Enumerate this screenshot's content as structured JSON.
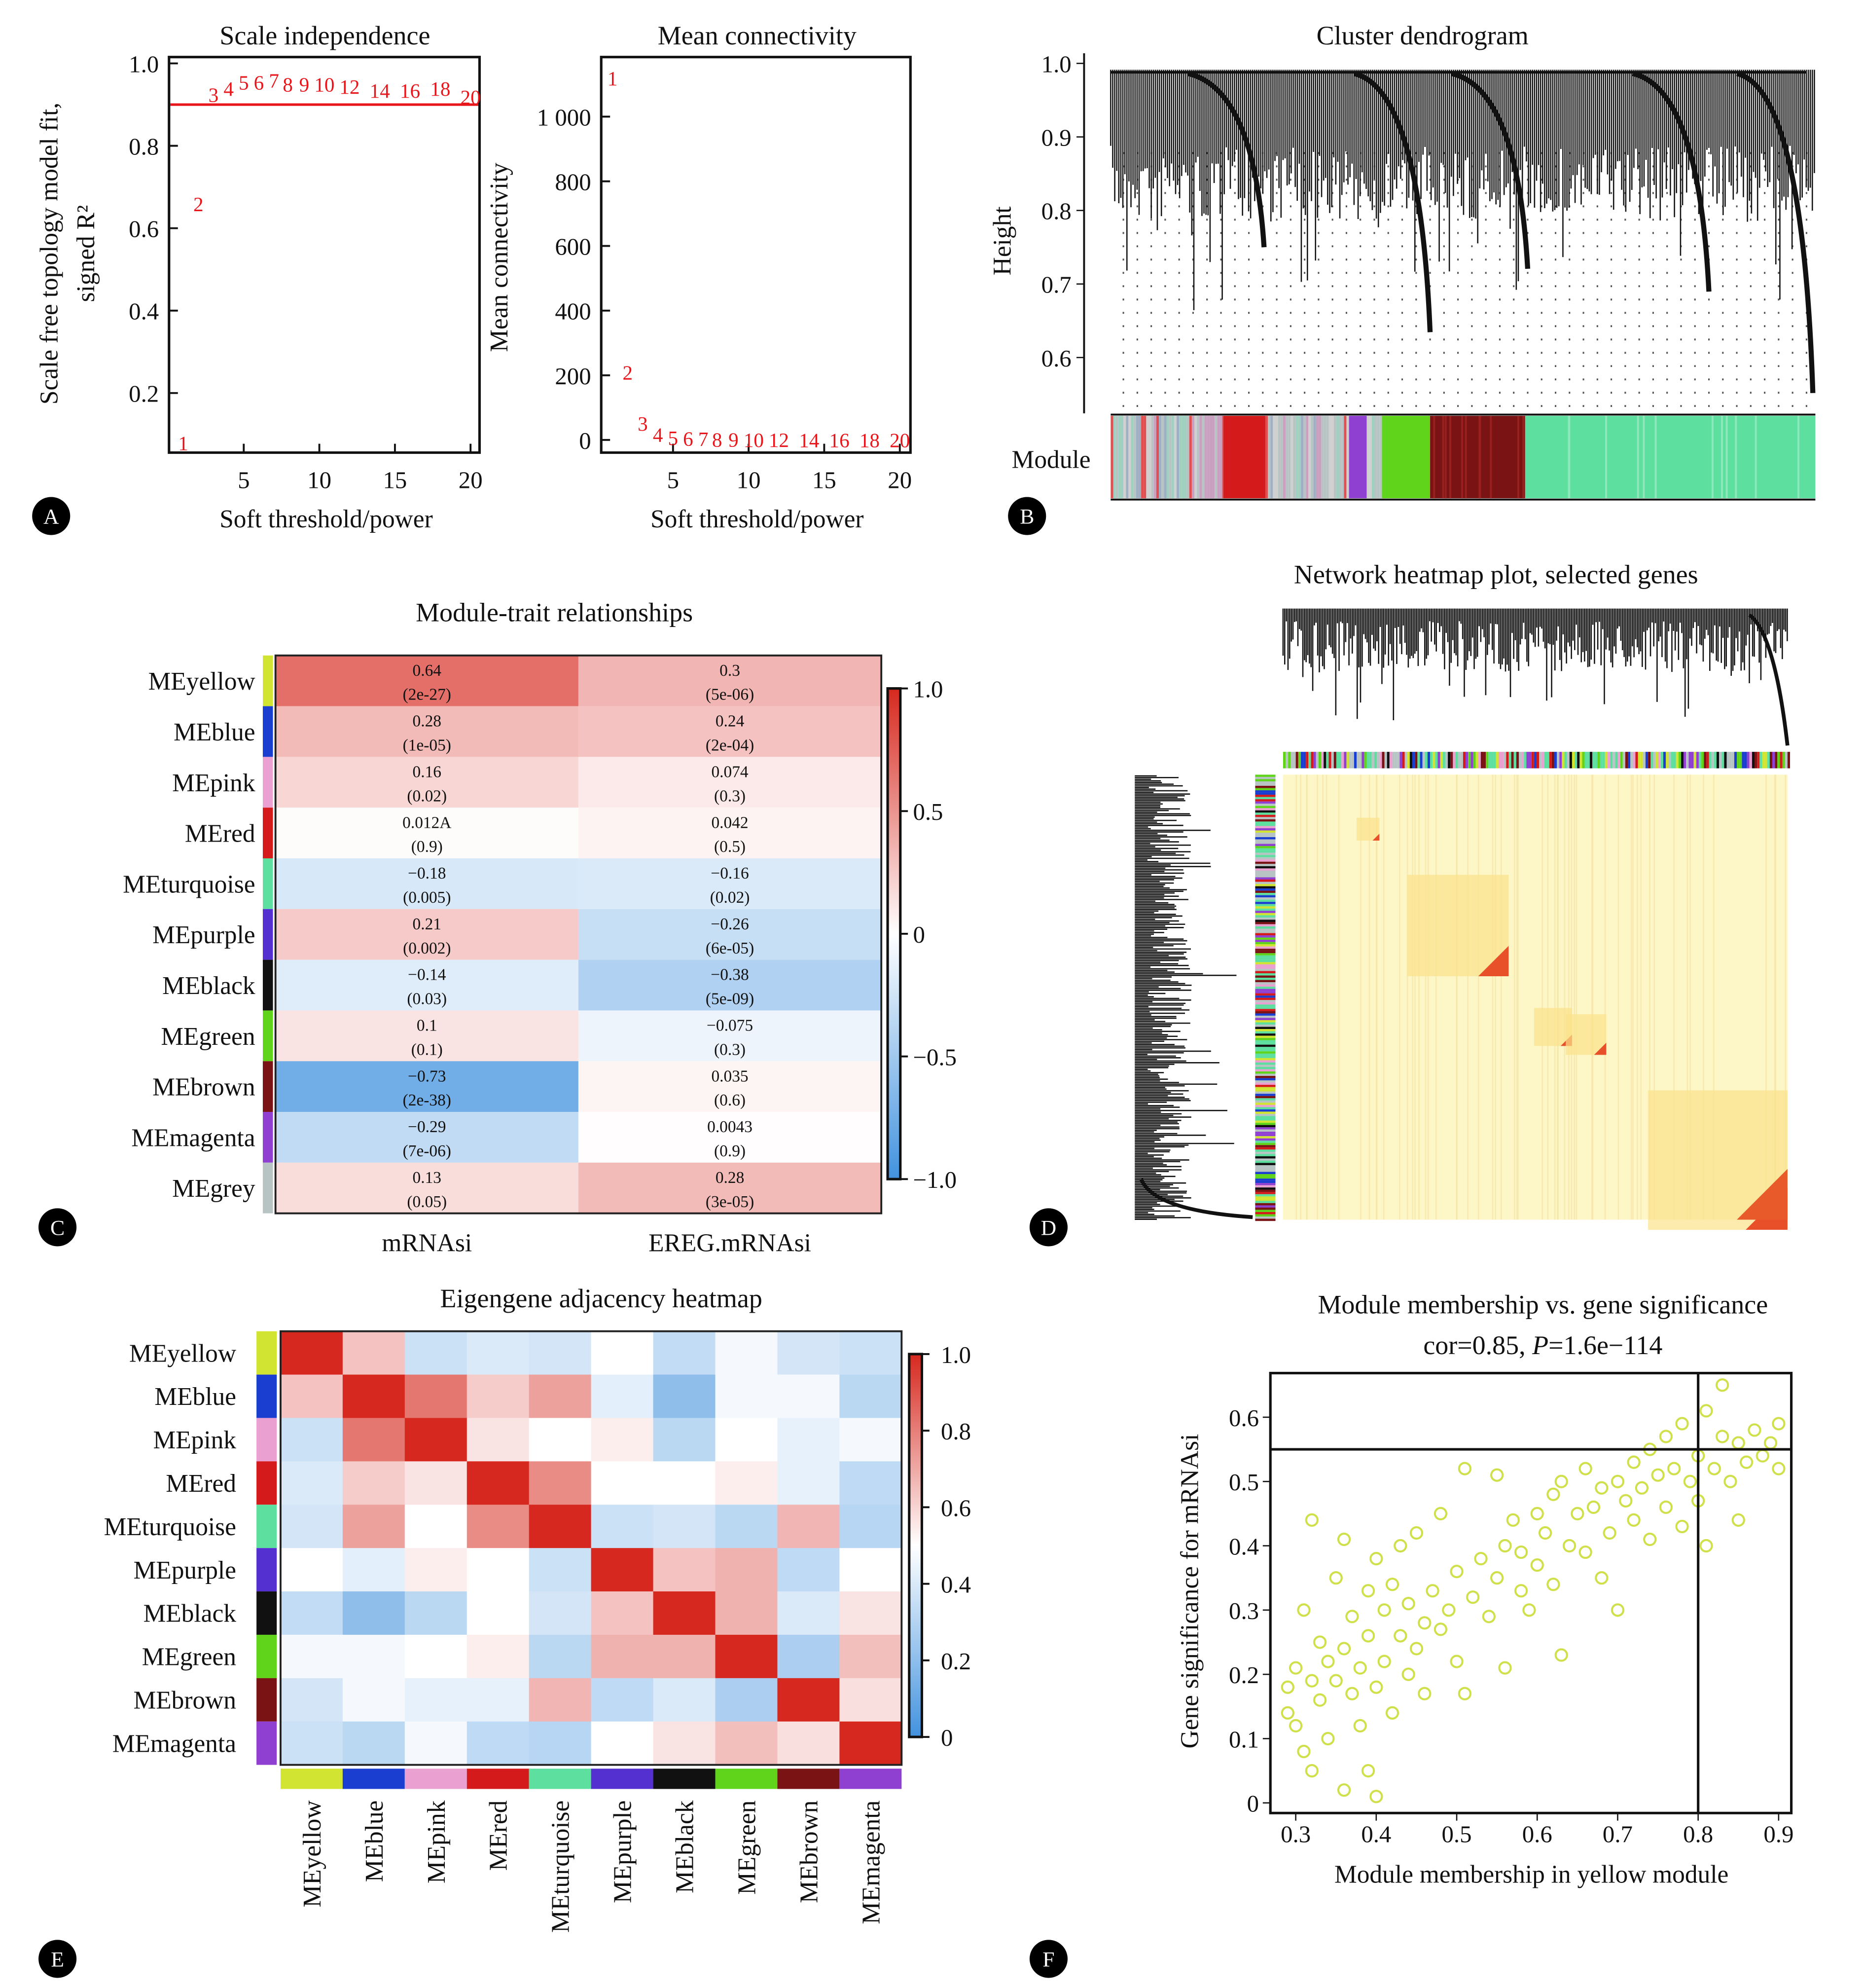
{
  "panels": {
    "A": "A",
    "B": "B",
    "C": "C",
    "D": "D",
    "E": "E",
    "F": "F"
  },
  "chart_data": [
    {
      "id": "scale_independence",
      "type": "scatter",
      "title": "Scale independence",
      "xlabel": "Soft threshold/power",
      "ylabel_line1": "Scale free topology model fit,",
      "ylabel_line2": "signed R²",
      "xticks": [
        "5",
        "10",
        "15",
        "20"
      ],
      "yticks": [
        "0.2",
        "0.4",
        "0.6",
        "0.8",
        "1.0"
      ],
      "xlim": [
        0,
        20.5
      ],
      "ylim": [
        0.05,
        1.0
      ],
      "threshold_line": 0.9,
      "threshold_color": "#e8151b",
      "points": [
        {
          "label": "1",
          "x": 1,
          "y": 0.08
        },
        {
          "label": "2",
          "x": 2,
          "y": 0.66
        },
        {
          "label": "3",
          "x": 3,
          "y": 0.925
        },
        {
          "label": "4",
          "x": 4,
          "y": 0.94
        },
        {
          "label": "5",
          "x": 5,
          "y": 0.955
        },
        {
          "label": "6",
          "x": 6,
          "y": 0.955
        },
        {
          "label": "7",
          "x": 7,
          "y": 0.96
        },
        {
          "label": "8",
          "x": 8,
          "y": 0.95
        },
        {
          "label": "9",
          "x": 9,
          "y": 0.95
        },
        {
          "label": "10",
          "x": 10,
          "y": 0.95
        },
        {
          "label": "12",
          "x": 12,
          "y": 0.945
        },
        {
          "label": "14",
          "x": 14,
          "y": 0.935
        },
        {
          "label": "16",
          "x": 16,
          "y": 0.935
        },
        {
          "label": "18",
          "x": 18,
          "y": 0.94
        },
        {
          "label": "20",
          "x": 20,
          "y": 0.92
        }
      ]
    },
    {
      "id": "mean_connectivity",
      "type": "scatter",
      "title": "Mean connectivity",
      "xlabel": "Soft threshold/power",
      "ylabel": "Mean connectivity",
      "xticks": [
        "5",
        "10",
        "15",
        "20"
      ],
      "yticks": [
        "0",
        "200",
        "400",
        "600",
        "800",
        "1 000"
      ],
      "ytick_values": [
        0,
        200,
        400,
        600,
        800,
        1000
      ],
      "xlim": [
        0,
        20.5
      ],
      "ylim": [
        -40,
        1200
      ],
      "points": [
        {
          "label": "1",
          "x": 1,
          "y": 1120
        },
        {
          "label": "2",
          "x": 2,
          "y": 210
        },
        {
          "label": "3",
          "x": 3,
          "y": 52
        },
        {
          "label": "4",
          "x": 4,
          "y": 18
        },
        {
          "label": "5",
          "x": 5,
          "y": 8
        },
        {
          "label": "6",
          "x": 6,
          "y": 6
        },
        {
          "label": "7",
          "x": 7,
          "y": 5
        },
        {
          "label": "8",
          "x": 8,
          "y": 3
        },
        {
          "label": "9",
          "x": 9,
          "y": 3
        },
        {
          "label": "10",
          "x": 10,
          "y": 2
        },
        {
          "label": "12",
          "x": 12,
          "y": 2
        },
        {
          "label": "14",
          "x": 14,
          "y": 1
        },
        {
          "label": "16",
          "x": 16,
          "y": 1
        },
        {
          "label": "18",
          "x": 18,
          "y": 1
        },
        {
          "label": "20",
          "x": 20,
          "y": 1
        }
      ]
    },
    {
      "id": "cluster_dendrogram",
      "type": "dendrogram",
      "title": "Cluster dendrogram",
      "ylabel": "Height",
      "yticks": [
        "0.6",
        "0.7",
        "0.8",
        "0.9",
        "1.0"
      ],
      "ylim": [
        0.55,
        1.0
      ],
      "color_bar_label": "Module"
    },
    {
      "id": "module_trait",
      "type": "heatmap",
      "title": "Module-trait relationships",
      "columns": [
        "mRNAsi",
        "EREG.mRNAsi"
      ],
      "colorbar_ticks": [
        "1.0",
        "0.5",
        "0",
        "−0.5",
        "−1.0"
      ],
      "rows": [
        {
          "name": "MEyellow",
          "color": "#d2e432",
          "cells": [
            {
              "r": 0.64,
              "v": "0.64",
              "p": "(2e-27)"
            },
            {
              "r": 0.3,
              "v": "0.3",
              "p": "(5e-06)"
            }
          ]
        },
        {
          "name": "MEblue",
          "color": "#1a3fd0",
          "cells": [
            {
              "r": 0.28,
              "v": "0.28",
              "p": "(1e-05)"
            },
            {
              "r": 0.24,
              "v": "0.24",
              "p": "(2e-04)"
            }
          ]
        },
        {
          "name": "MEpink",
          "color": "#eba0d2",
          "cells": [
            {
              "r": 0.16,
              "v": "0.16",
              "p": "(0.02)"
            },
            {
              "r": 0.074,
              "v": "0.074",
              "p": "(0.3)"
            }
          ]
        },
        {
          "name": "MEred",
          "color": "#d41a1a",
          "cells": [
            {
              "r": 0.012,
              "v": "0.012A",
              "p": "(0.9)"
            },
            {
              "r": 0.042,
              "v": "0.042",
              "p": "(0.5)"
            }
          ]
        },
        {
          "name": "MEturquoise",
          "color": "#5ddf9f",
          "cells": [
            {
              "r": -0.18,
              "v": "−0.18",
              "p": "(0.005)"
            },
            {
              "r": -0.16,
              "v": "−0.16",
              "p": "(0.02)"
            }
          ]
        },
        {
          "name": "MEpurple",
          "color": "#5530d0",
          "cells": [
            {
              "r": 0.21,
              "v": "0.21",
              "p": "(0.002)"
            },
            {
              "r": -0.26,
              "v": "−0.26",
              "p": "(6e-05)"
            }
          ]
        },
        {
          "name": "MEblack",
          "color": "#111111",
          "cells": [
            {
              "r": -0.14,
              "v": "−0.14",
              "p": "(0.03)"
            },
            {
              "r": -0.38,
              "v": "−0.38",
              "p": "(5e-09)"
            }
          ]
        },
        {
          "name": "MEgreen",
          "color": "#5fd41a",
          "cells": [
            {
              "r": 0.1,
              "v": "0.1",
              "p": "(0.1)"
            },
            {
              "r": -0.075,
              "v": "−0.075",
              "p": "(0.3)"
            }
          ]
        },
        {
          "name": "MEbrown",
          "color": "#7a1414",
          "cells": [
            {
              "r": -0.73,
              "v": "−0.73",
              "p": "(2e-38)"
            },
            {
              "r": 0.035,
              "v": "0.035",
              "p": "(0.6)"
            }
          ]
        },
        {
          "name": "MEmagenta",
          "color": "#9040d0",
          "cells": [
            {
              "r": -0.29,
              "v": "−0.29",
              "p": "(7e-06)"
            },
            {
              "r": 0.0043,
              "v": "0.0043",
              "p": "(0.9)"
            }
          ]
        },
        {
          "name": "MEgrey",
          "color": "#b8c4c4",
          "cells": [
            {
              "r": 0.13,
              "v": "0.13",
              "p": "(0.05)"
            },
            {
              "r": 0.28,
              "v": "0.28",
              "p": "(3e-05)"
            }
          ]
        }
      ]
    },
    {
      "id": "network_heatmap",
      "type": "heatmap",
      "title": "Network heatmap plot, selected genes"
    },
    {
      "id": "eigengene_adjacency",
      "type": "heatmap",
      "title": "Eigengene adjacency heatmap",
      "labels": [
        "MEyellow",
        "MEblue",
        "MEpink",
        "MEred",
        "MEturquoise",
        "MEpurple",
        "MEblack",
        "MEgreen",
        "MEbrown",
        "MEmagenta"
      ],
      "colors": [
        "#d2e432",
        "#1a3fd0",
        "#eba0d2",
        "#d41a1a",
        "#5ddf9f",
        "#5530d0",
        "#111111",
        "#5fd41a",
        "#7a1414",
        "#9040d0"
      ],
      "colorbar_ticks": [
        "1.0",
        "0.8",
        "0.6",
        "0.4",
        "0.2",
        "0"
      ],
      "values": [
        [
          1.0,
          0.62,
          0.38,
          0.42,
          0.4,
          0.5,
          0.36,
          0.48,
          0.4,
          0.38
        ],
        [
          0.62,
          1.0,
          0.8,
          0.6,
          0.7,
          0.44,
          0.22,
          0.48,
          0.48,
          0.34
        ],
        [
          0.38,
          0.8,
          1.0,
          0.55,
          0.5,
          0.53,
          0.34,
          0.5,
          0.45,
          0.48
        ],
        [
          0.42,
          0.6,
          0.55,
          1.0,
          0.75,
          0.5,
          0.5,
          0.53,
          0.45,
          0.35
        ],
        [
          0.4,
          0.7,
          0.5,
          0.75,
          1.0,
          0.38,
          0.4,
          0.34,
          0.65,
          0.33
        ],
        [
          0.5,
          0.44,
          0.53,
          0.5,
          0.38,
          1.0,
          0.62,
          0.66,
          0.35,
          0.5
        ],
        [
          0.36,
          0.22,
          0.34,
          0.5,
          0.4,
          0.62,
          1.0,
          0.66,
          0.42,
          0.55
        ],
        [
          0.48,
          0.48,
          0.5,
          0.53,
          0.34,
          0.66,
          0.66,
          1.0,
          0.3,
          0.63
        ],
        [
          0.4,
          0.48,
          0.45,
          0.45,
          0.65,
          0.35,
          0.42,
          0.3,
          1.0,
          0.56
        ],
        [
          0.38,
          0.34,
          0.48,
          0.35,
          0.33,
          0.5,
          0.55,
          0.63,
          0.56,
          1.0
        ]
      ]
    },
    {
      "id": "mm_vs_gs",
      "type": "scatter",
      "title_line1": "Module membership vs. gene significance",
      "title_cor": "cor=0.85, ",
      "title_p_label": "P",
      "title_p_value": "=1.6e−114",
      "xlabel": "Module membership in yellow module",
      "ylabel": "Gene significance for mRNAsi",
      "xticks": [
        "0.3",
        "0.4",
        "0.5",
        "0.6",
        "0.7",
        "0.8",
        "0.9"
      ],
      "xtick_values": [
        0.3,
        0.4,
        0.5,
        0.6,
        0.7,
        0.8,
        0.9
      ],
      "yticks": [
        "0",
        "0.1",
        "0.2",
        "0.3",
        "0.4",
        "0.5",
        "0.6"
      ],
      "ytick_values": [
        0,
        0.1,
        0.2,
        0.3,
        0.4,
        0.5,
        0.6
      ],
      "xlim": [
        0.27,
        0.92
      ],
      "ylim": [
        -0.01,
        0.67
      ],
      "hline": 0.55,
      "vline": 0.8,
      "point_color": "#cfe04a",
      "points": [
        [
          0.29,
          0.18
        ],
        [
          0.29,
          0.14
        ],
        [
          0.3,
          0.21
        ],
        [
          0.3,
          0.12
        ],
        [
          0.31,
          0.3
        ],
        [
          0.31,
          0.08
        ],
        [
          0.32,
          0.44
        ],
        [
          0.32,
          0.19
        ],
        [
          0.32,
          0.05
        ],
        [
          0.33,
          0.25
        ],
        [
          0.33,
          0.16
        ],
        [
          0.34,
          0.22
        ],
        [
          0.34,
          0.1
        ],
        [
          0.35,
          0.35
        ],
        [
          0.35,
          0.19
        ],
        [
          0.36,
          0.41
        ],
        [
          0.36,
          0.24
        ],
        [
          0.36,
          0.02
        ],
        [
          0.37,
          0.17
        ],
        [
          0.37,
          0.29
        ],
        [
          0.38,
          0.21
        ],
        [
          0.38,
          0.12
        ],
        [
          0.39,
          0.33
        ],
        [
          0.39,
          0.26
        ],
        [
          0.39,
          0.05
        ],
        [
          0.4,
          0.38
        ],
        [
          0.4,
          0.18
        ],
        [
          0.4,
          0.01
        ],
        [
          0.41,
          0.3
        ],
        [
          0.41,
          0.22
        ],
        [
          0.42,
          0.34
        ],
        [
          0.42,
          0.14
        ],
        [
          0.43,
          0.26
        ],
        [
          0.43,
          0.4
        ],
        [
          0.44,
          0.2
        ],
        [
          0.44,
          0.31
        ],
        [
          0.45,
          0.42
        ],
        [
          0.45,
          0.24
        ],
        [
          0.46,
          0.28
        ],
        [
          0.46,
          0.17
        ],
        [
          0.47,
          0.33
        ],
        [
          0.48,
          0.45
        ],
        [
          0.48,
          0.27
        ],
        [
          0.49,
          0.3
        ],
        [
          0.5,
          0.36
        ],
        [
          0.5,
          0.22
        ],
        [
          0.51,
          0.52
        ],
        [
          0.51,
          0.17
        ],
        [
          0.52,
          0.32
        ],
        [
          0.53,
          0.38
        ],
        [
          0.54,
          0.29
        ],
        [
          0.55,
          0.51
        ],
        [
          0.55,
          0.35
        ],
        [
          0.56,
          0.21
        ],
        [
          0.56,
          0.4
        ],
        [
          0.57,
          0.44
        ],
        [
          0.58,
          0.33
        ],
        [
          0.58,
          0.39
        ],
        [
          0.59,
          0.3
        ],
        [
          0.6,
          0.45
        ],
        [
          0.6,
          0.37
        ],
        [
          0.61,
          0.42
        ],
        [
          0.62,
          0.48
        ],
        [
          0.62,
          0.34
        ],
        [
          0.63,
          0.23
        ],
        [
          0.63,
          0.5
        ],
        [
          0.64,
          0.4
        ],
        [
          0.65,
          0.45
        ],
        [
          0.66,
          0.39
        ],
        [
          0.66,
          0.52
        ],
        [
          0.67,
          0.46
        ],
        [
          0.68,
          0.35
        ],
        [
          0.68,
          0.49
        ],
        [
          0.69,
          0.42
        ],
        [
          0.7,
          0.5
        ],
        [
          0.7,
          0.3
        ],
        [
          0.71,
          0.47
        ],
        [
          0.72,
          0.53
        ],
        [
          0.72,
          0.44
        ],
        [
          0.73,
          0.49
        ],
        [
          0.74,
          0.55
        ],
        [
          0.74,
          0.41
        ],
        [
          0.75,
          0.51
        ],
        [
          0.76,
          0.57
        ],
        [
          0.76,
          0.46
        ],
        [
          0.77,
          0.52
        ],
        [
          0.78,
          0.43
        ],
        [
          0.78,
          0.59
        ],
        [
          0.79,
          0.5
        ],
        [
          0.8,
          0.54
        ],
        [
          0.8,
          0.47
        ],
        [
          0.81,
          0.61
        ],
        [
          0.81,
          0.4
        ],
        [
          0.82,
          0.52
        ],
        [
          0.83,
          0.57
        ],
        [
          0.83,
          0.65
        ],
        [
          0.84,
          0.5
        ],
        [
          0.85,
          0.56
        ],
        [
          0.85,
          0.44
        ],
        [
          0.86,
          0.53
        ],
        [
          0.87,
          0.58
        ],
        [
          0.88,
          0.54
        ],
        [
          0.89,
          0.56
        ],
        [
          0.9,
          0.52
        ],
        [
          0.9,
          0.59
        ]
      ]
    }
  ]
}
